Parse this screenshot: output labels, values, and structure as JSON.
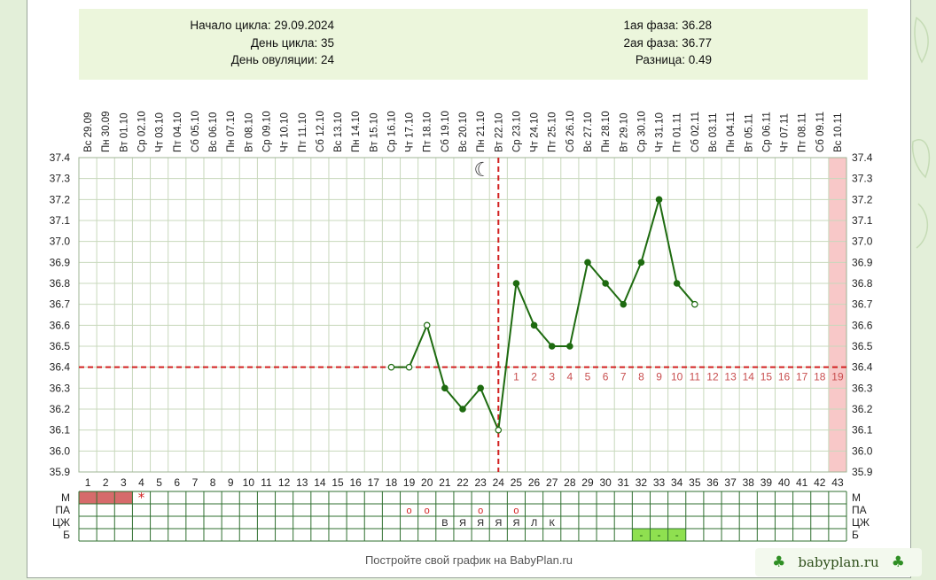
{
  "header": {
    "left_lines": [
      "Начало цикла: 29.09.2024",
      "День цикла: 35",
      "День овуляции: 24"
    ],
    "right_lines": [
      "1ая фаза: 36.28",
      "2ая фаза: 36.77",
      "Разница: 0.49"
    ]
  },
  "chart_data": {
    "type": "line",
    "num_days": 43,
    "date_labels": [
      "Вс 29.09",
      "Пн 30.09",
      "Вт 01.10",
      "Ср 02.10",
      "Чт 03.10",
      "Пт 04.10",
      "Сб 05.10",
      "Вс 06.10",
      "Пн 07.10",
      "Вт 08.10",
      "Ср 09.10",
      "Чт 10.10",
      "Пт 11.10",
      "Сб 12.10",
      "Вс 13.10",
      "Пн 14.10",
      "Вт 15.10",
      "Ср 16.10",
      "Чт 17.10",
      "Пт 18.10",
      "Сб 19.10",
      "Вс 20.10",
      "Пн 21.10",
      "Вт 22.10",
      "Ср 23.10",
      "Чт 24.10",
      "Пт 25.10",
      "Сб 26.10",
      "Вс 27.10",
      "Пн 28.10",
      "Вт 29.10",
      "Ср 30.10",
      "Чт 31.10",
      "Пт 01.11",
      "Сб 02.11",
      "Вс 03.11",
      "Пн 04.11",
      "Вт 05.11",
      "Ср 06.11",
      "Чт 07.11",
      "Пт 08.11",
      "Сб 09.11",
      "Вс 10.11"
    ],
    "y_ticks": [
      "37.4",
      "37.3",
      "37.2",
      "37.1",
      "37.0",
      "36.9",
      "36.8",
      "36.7",
      "36.6",
      "36.5",
      "36.4",
      "36.3",
      "36.2",
      "36.1",
      "36.0",
      "35.9"
    ],
    "ylim": [
      35.9,
      37.4
    ],
    "temperatures": [
      {
        "day": 18,
        "value": 36.4,
        "marker": "open"
      },
      {
        "day": 19,
        "value": 36.4,
        "marker": "open"
      },
      {
        "day": 20,
        "value": 36.6,
        "marker": "open"
      },
      {
        "day": 21,
        "value": 36.3,
        "marker": "filled"
      },
      {
        "day": 22,
        "value": 36.2,
        "marker": "filled"
      },
      {
        "day": 23,
        "value": 36.3,
        "marker": "filled"
      },
      {
        "day": 24,
        "value": 36.1,
        "marker": "open"
      },
      {
        "day": 25,
        "value": 36.8,
        "marker": "filled"
      },
      {
        "day": 26,
        "value": 36.6,
        "marker": "filled"
      },
      {
        "day": 27,
        "value": 36.5,
        "marker": "filled"
      },
      {
        "day": 28,
        "value": 36.5,
        "marker": "filled"
      },
      {
        "day": 29,
        "value": 36.9,
        "marker": "filled"
      },
      {
        "day": 30,
        "value": 36.8,
        "marker": "filled"
      },
      {
        "day": 31,
        "value": 36.7,
        "marker": "filled"
      },
      {
        "day": 32,
        "value": 36.9,
        "marker": "filled"
      },
      {
        "day": 33,
        "value": 37.2,
        "marker": "filled"
      },
      {
        "day": 34,
        "value": 36.8,
        "marker": "filled"
      },
      {
        "day": 35,
        "value": 36.7,
        "marker": "open"
      }
    ],
    "coverline": 36.4,
    "ovulation_day": 24,
    "luteal_start_day": 25,
    "luteal_labels": [
      "1",
      "2",
      "3",
      "4",
      "5",
      "6",
      "7",
      "8",
      "9",
      "10",
      "11",
      "12",
      "13",
      "14",
      "15",
      "16",
      "17",
      "18",
      "19"
    ],
    "highlight_day": 43,
    "moon_symbol": "☾",
    "colors": {
      "temp_line": "#1e6b10",
      "coverline": "#d22020",
      "grid": "#c8d8bc",
      "luteal_labels": "#c84f4f",
      "highlight": "#f8c8c8",
      "menses": "#d66b6b",
      "dry_days": "#8fe050"
    },
    "bottom_rows": {
      "labels": [
        "М",
        "ПА",
        "ЦЖ",
        "Б"
      ],
      "menses_days": [
        1,
        2,
        3
      ],
      "menses_star": {
        "day": 4,
        "symbol": "*"
      },
      "intercourse": {
        "days": [
          19,
          20,
          23,
          25
        ],
        "symbol": "o"
      },
      "cervical_fluid": [
        {
          "day": 21,
          "code": "В"
        },
        {
          "day": 22,
          "code": "Я"
        },
        {
          "day": 23,
          "code": "Я"
        },
        {
          "day": 24,
          "code": "Я"
        },
        {
          "day": 25,
          "code": "Я"
        },
        {
          "day": 26,
          "code": "Л"
        },
        {
          "day": 27,
          "code": "К"
        }
      ],
      "test_days": [
        {
          "day": 32,
          "symbol": "-"
        },
        {
          "day": 33,
          "symbol": "-"
        },
        {
          "day": 34,
          "symbol": "-"
        }
      ]
    }
  },
  "footer": {
    "text": "Постройте свой график на BabyPlan.ru"
  },
  "brand": {
    "name": "babyplan.ru",
    "clover": "♣"
  }
}
